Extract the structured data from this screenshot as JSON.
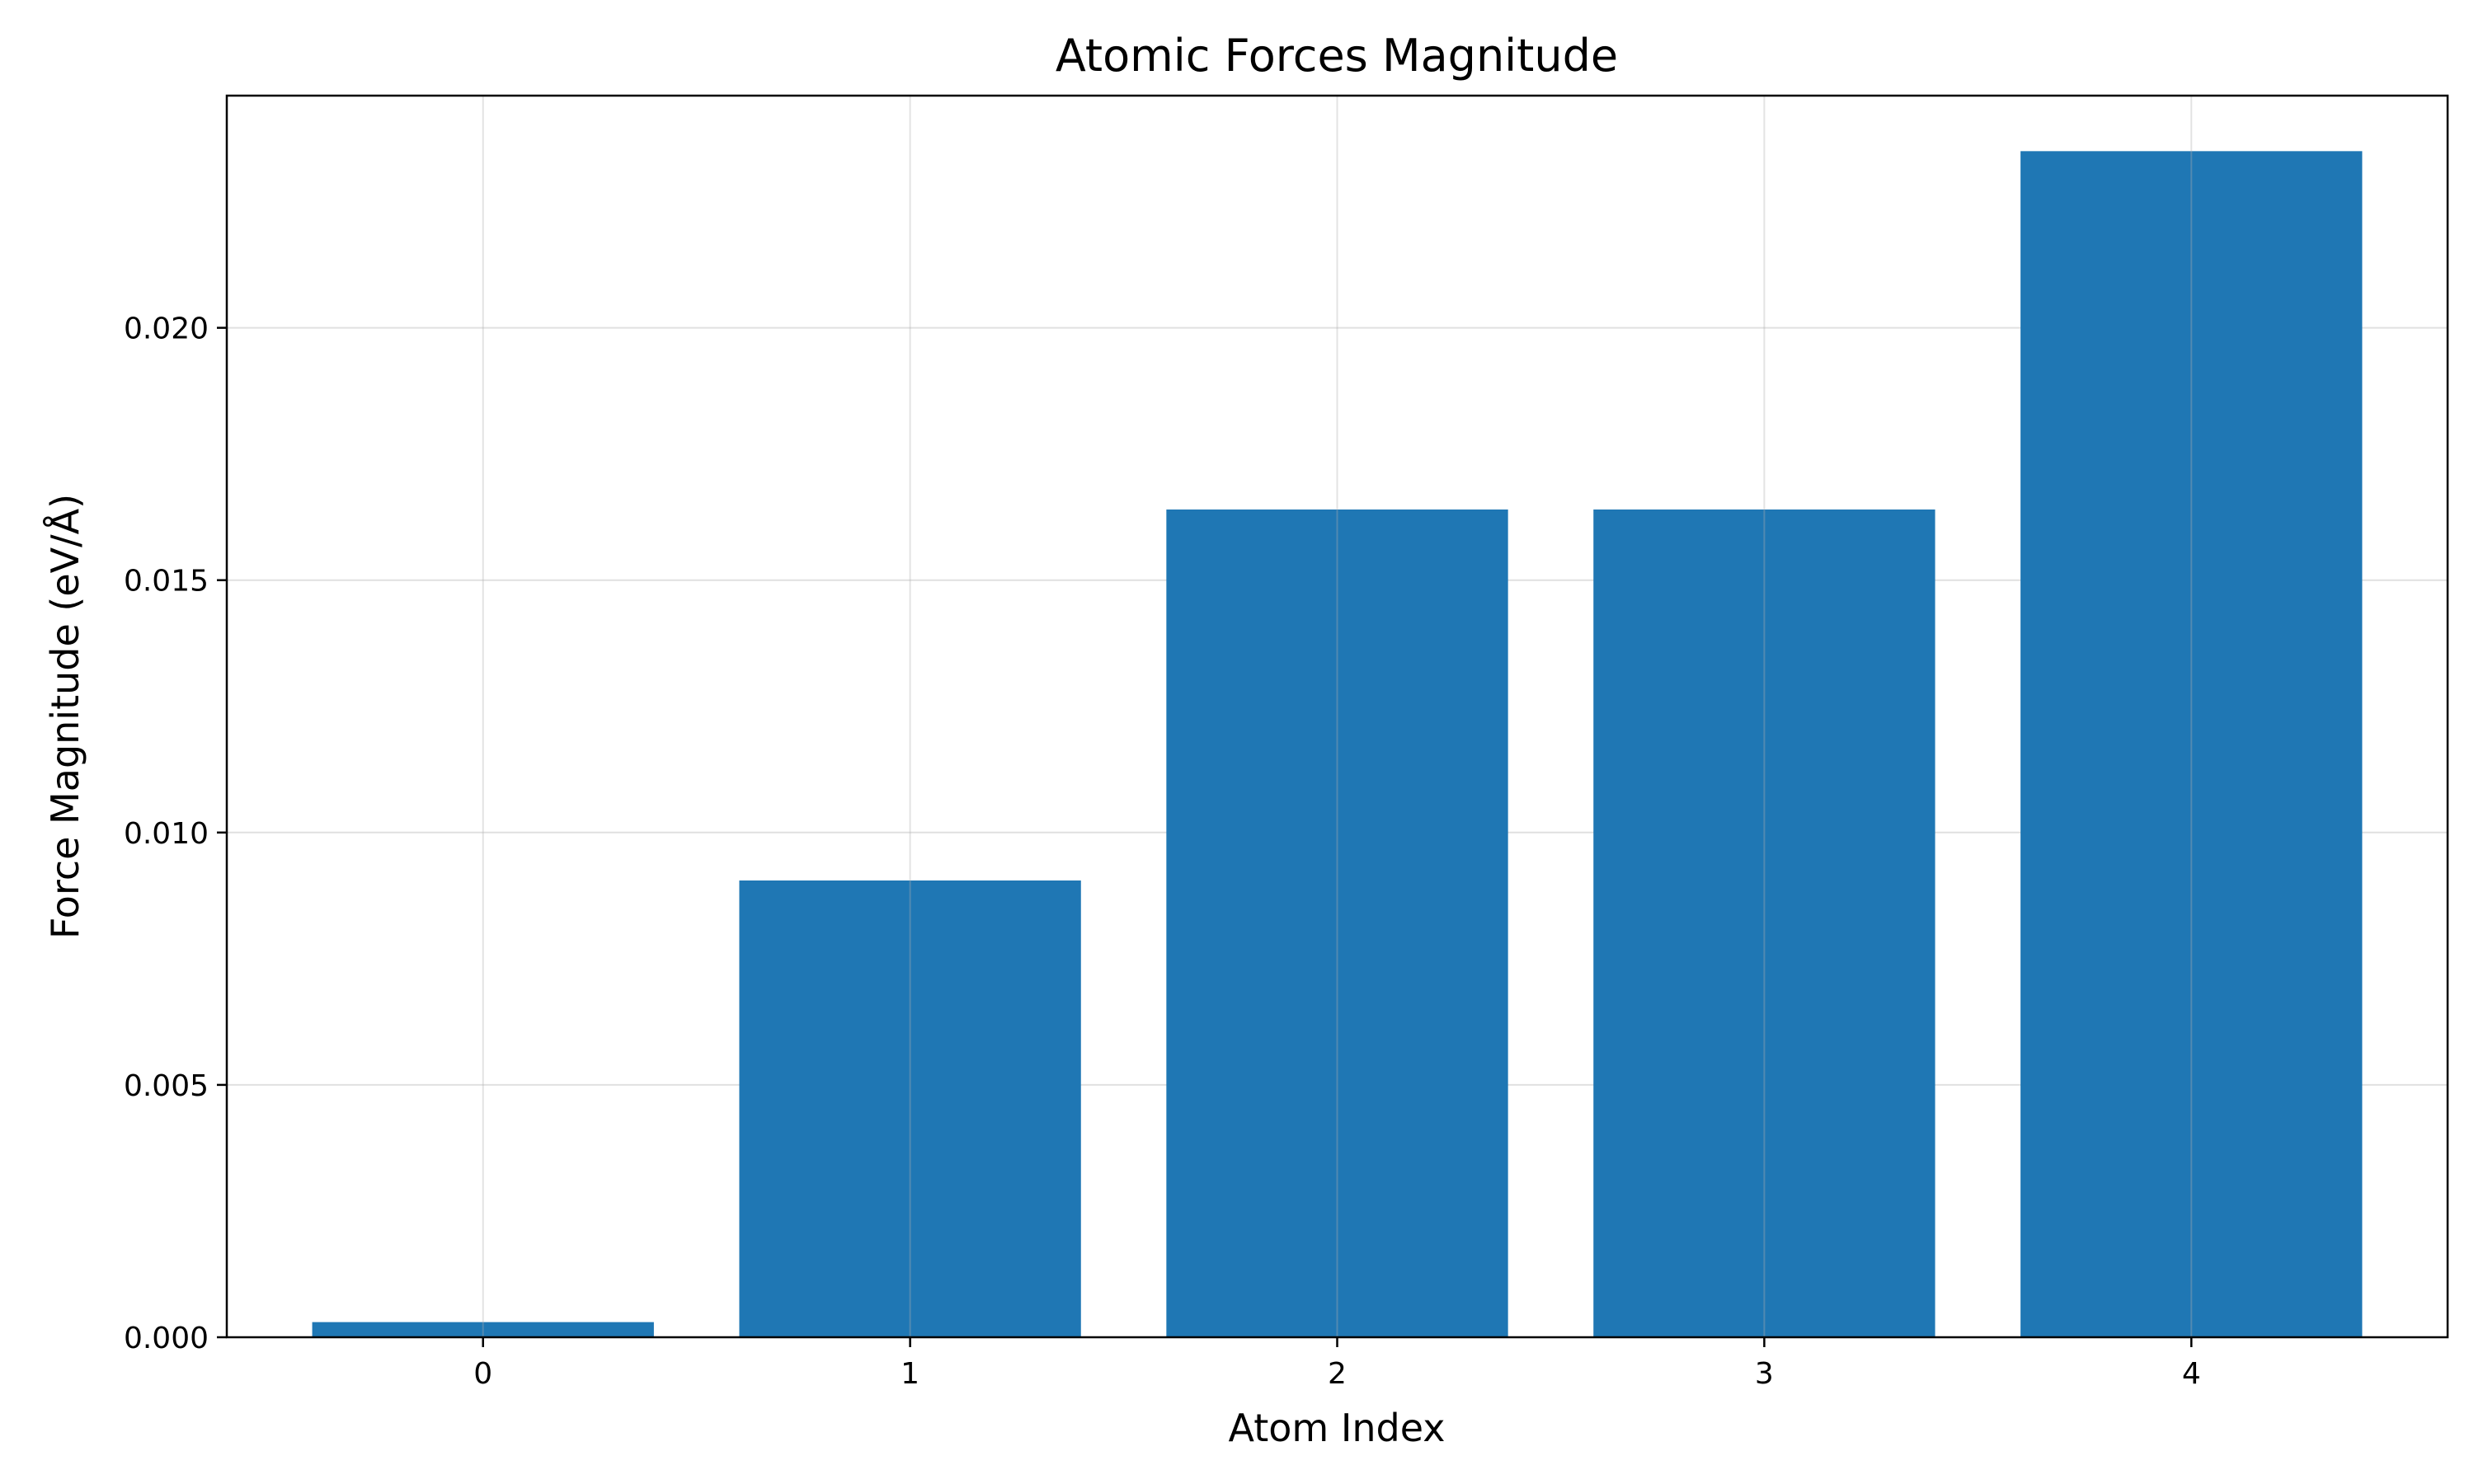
{
  "chart_data": {
    "type": "bar",
    "title": "Atomic Forces Magnitude",
    "xlabel": "Atom Index",
    "ylabel": "Force Magnitude (eV/Å)",
    "categories": [
      "0",
      "1",
      "2",
      "3",
      "4"
    ],
    "values": [
      0.0003,
      0.00905,
      0.0164,
      0.0164,
      0.0235
    ],
    "ylim": [
      0,
      0.0246
    ],
    "yticks": [
      "0.000",
      "0.005",
      "0.010",
      "0.015",
      "0.020"
    ],
    "ytick_values": [
      0,
      0.005,
      0.01,
      0.015,
      0.02
    ],
    "grid": true,
    "bar_color": "#1f77b4",
    "grid_color": "#e0e0e0"
  }
}
